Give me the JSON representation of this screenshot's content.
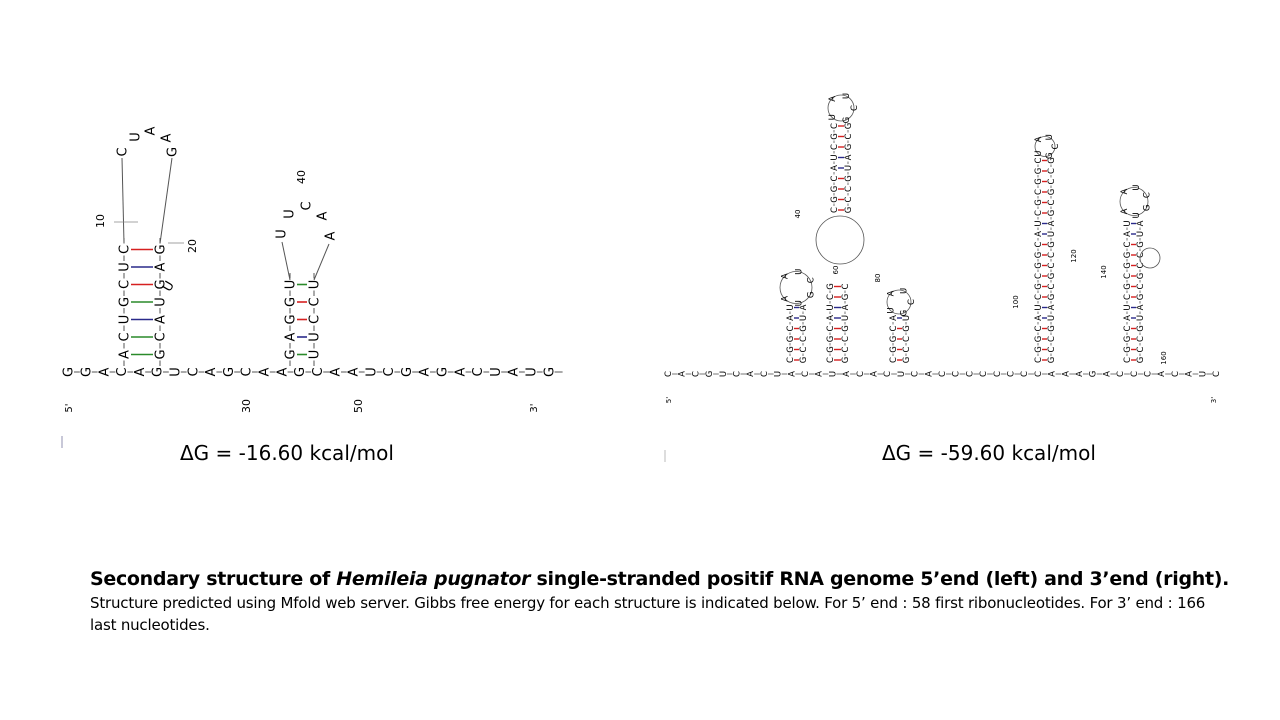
{
  "left_structure": {
    "delta_g": "ΔG = -16.60 kcal/mol",
    "backbone_bases": [
      "G",
      "G",
      "A",
      "C",
      "A",
      "G",
      "U",
      "C",
      "A",
      "G",
      "C",
      "A",
      "A",
      "G",
      "C",
      "A",
      "A",
      "U",
      "C",
      "G",
      "A",
      "G",
      "A",
      "C",
      "U",
      "A",
      "U",
      "G"
    ],
    "end_5": "5'",
    "end_3": "3'",
    "position_labels": [
      "10",
      "20",
      "30",
      "40",
      "50"
    ],
    "hairpin1_left_stem": [
      "A",
      "C",
      "U",
      "G",
      "C",
      "U",
      "C"
    ],
    "hairpin1_right_stem": [
      "G",
      "C",
      "A",
      "U",
      "G",
      "A",
      "G",
      "C",
      "U"
    ],
    "hairpin1_loop": [
      "C",
      "U",
      "A"
    ],
    "hairpin2_left_stem": [
      "G",
      "A",
      "G",
      "G",
      "U"
    ],
    "hairpin2_right_stem": [
      "U",
      "U",
      "C",
      "C",
      "U",
      "A"
    ],
    "hairpin2_loop": [
      "U",
      "C",
      "A"
    ]
  },
  "right_structure": {
    "delta_g": "ΔG = -59.60 kcal/mol",
    "end_5": "5'",
    "end_3": "3'",
    "backbone_bases": [
      "C",
      "A",
      "C",
      "G",
      "U",
      "C",
      "A",
      "C",
      "U",
      "A",
      "C",
      "A",
      "U",
      "A",
      "C",
      "A",
      "C",
      "U",
      "C",
      "A",
      "C",
      "C",
      "C",
      "C",
      "C",
      "C",
      "C",
      "C",
      "A",
      "A",
      "A",
      "G",
      "A",
      "C",
      "C",
      "C",
      "A",
      "C",
      "A",
      "U",
      "C"
    ],
    "position_labels": [
      "40",
      "60",
      "80",
      "100",
      "120",
      "140",
      "160"
    ]
  },
  "caption": {
    "title_prefix": "Secondary structure of ",
    "title_species": "Hemileia pugnator",
    "title_suffix": " single-stranded positif RNA genome 5’end (left) and 3’end (right).",
    "body": "Structure predicted using Mfold web server. Gibbs free energy for each structure is indicated below. For 5’ end : 58 first ribonucleotides. For 3’ end : 166 last nucleotides."
  },
  "colors": {
    "bond_gc": "#d62020",
    "bond_au": "#2a2a8a",
    "bond_gu": "#2a8a2a",
    "backbone": "#555555",
    "text": "#000000"
  }
}
